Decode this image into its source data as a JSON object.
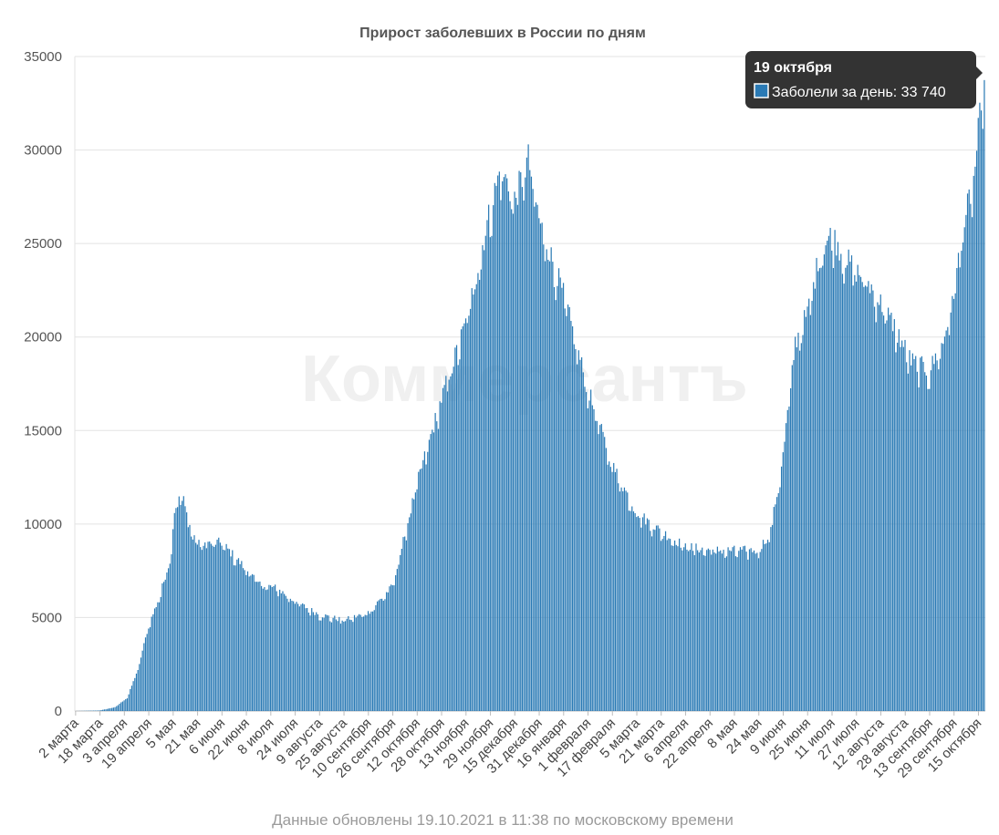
{
  "chart_data": {
    "type": "bar",
    "title": "Прирост заболевших в России по дням",
    "ylim": [
      0,
      35000
    ],
    "yticks": [
      0,
      5000,
      10000,
      15000,
      20000,
      25000,
      30000,
      35000
    ],
    "ytick_labels": [
      "0",
      "5000",
      "10000",
      "15000",
      "20000",
      "25000",
      "30000",
      "35000"
    ],
    "grid": true,
    "x_start_date": "2020-03-02",
    "x_end_date": "2021-10-19",
    "xtick_labels": [
      "2 марта",
      "18 марта",
      "3 апреля",
      "19 апреля",
      "5 мая",
      "21 мая",
      "6 июня",
      "22 июня",
      "8 июля",
      "24 июля",
      "9 августа",
      "25 августа",
      "10 сентября",
      "26 сентября",
      "12 октября",
      "28 октября",
      "13 ноября",
      "29 ноября",
      "15 декабря",
      "31 декабря",
      "16 января",
      "1 февраля",
      "17 февраля",
      "5 марта",
      "21 марта",
      "6 апреля",
      "22 апреля",
      "8 мая",
      "24 мая",
      "9 июня",
      "25 июня",
      "11 июля",
      "27 июля",
      "12 августа",
      "28 августа",
      "13 сентября",
      "29 сентября",
      "15 октября"
    ],
    "series": [
      {
        "name": "Заболели за день",
        "color": "#2a7ab5",
        "anchors": [
          [
            "2020-03-02",
            0
          ],
          [
            "2020-03-18",
            30
          ],
          [
            "2020-03-28",
            200
          ],
          [
            "2020-04-05",
            700
          ],
          [
            "2020-04-12",
            2200
          ],
          [
            "2020-04-19",
            4500
          ],
          [
            "2020-04-26",
            6000
          ],
          [
            "2020-05-03",
            8000
          ],
          [
            "2020-05-06",
            10600
          ],
          [
            "2020-05-11",
            11500
          ],
          [
            "2020-05-15",
            10000
          ],
          [
            "2020-05-21",
            8800
          ],
          [
            "2020-05-31",
            8900
          ],
          [
            "2020-06-06",
            8900
          ],
          [
            "2020-06-14",
            8200
          ],
          [
            "2020-06-22",
            7500
          ],
          [
            "2020-07-01",
            6700
          ],
          [
            "2020-07-12",
            6500
          ],
          [
            "2020-07-24",
            5800
          ],
          [
            "2020-08-09",
            5100
          ],
          [
            "2020-08-25",
            4800
          ],
          [
            "2020-09-10",
            5200
          ],
          [
            "2020-09-26",
            6600
          ],
          [
            "2020-10-12",
            12000
          ],
          [
            "2020-10-28",
            16500
          ],
          [
            "2020-11-13",
            20500
          ],
          [
            "2020-11-29",
            26500
          ],
          [
            "2020-12-06",
            28700
          ],
          [
            "2020-12-15",
            27000
          ],
          [
            "2020-12-24",
            29200
          ],
          [
            "2020-12-31",
            26000
          ],
          [
            "2021-01-16",
            22000
          ],
          [
            "2021-02-01",
            17000
          ],
          [
            "2021-02-17",
            13000
          ],
          [
            "2021-03-05",
            10500
          ],
          [
            "2021-03-21",
            9500
          ],
          [
            "2021-04-06",
            8700
          ],
          [
            "2021-04-22",
            8500
          ],
          [
            "2021-05-08",
            8500
          ],
          [
            "2021-05-24",
            8500
          ],
          [
            "2021-06-01",
            9500
          ],
          [
            "2021-06-09",
            13500
          ],
          [
            "2021-06-17",
            19500
          ],
          [
            "2021-06-25",
            21000
          ],
          [
            "2021-07-04",
            24500
          ],
          [
            "2021-07-11",
            25200
          ],
          [
            "2021-07-21",
            23800
          ],
          [
            "2021-08-05",
            22500
          ],
          [
            "2021-08-20",
            20500
          ],
          [
            "2021-09-01",
            18500
          ],
          [
            "2021-09-13",
            18000
          ],
          [
            "2021-09-22",
            19500
          ],
          [
            "2021-09-29",
            22000
          ],
          [
            "2021-10-05",
            25500
          ],
          [
            "2021-10-12",
            28000
          ],
          [
            "2021-10-19",
            33740
          ]
        ]
      }
    ],
    "highlight": {
      "date": "19 октября",
      "label": "Заболели за день",
      "value": "33 740"
    },
    "watermark": "Коммерсантъ"
  },
  "footer": "Данные обновлены 19.10.2021 в 11:38 по московскому времени"
}
